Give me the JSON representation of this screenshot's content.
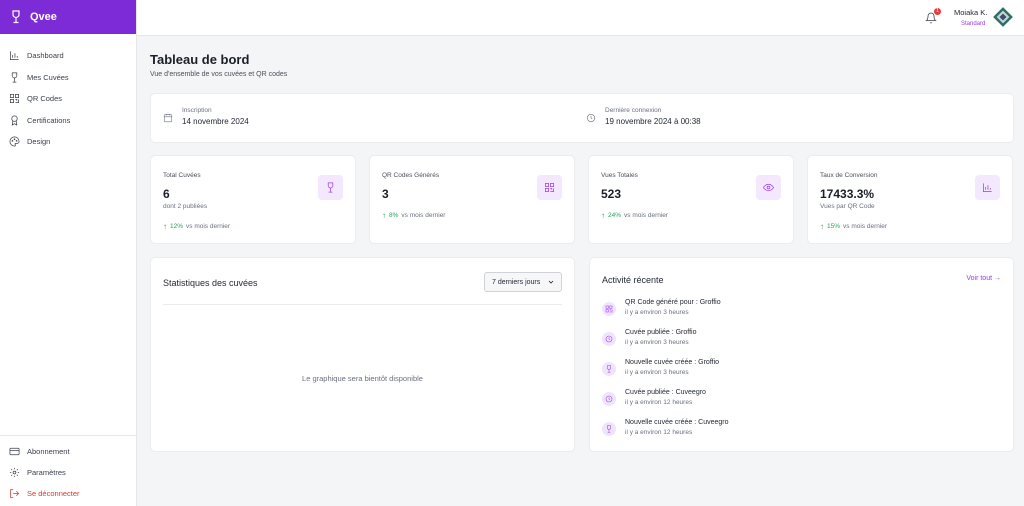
{
  "brand": {
    "name": "Qvee"
  },
  "sidebar": {
    "items": [
      {
        "label": "Dashboard",
        "icon": "chart-bar-icon"
      },
      {
        "label": "Mes Cuvées",
        "icon": "wine-glass-icon"
      },
      {
        "label": "QR Codes",
        "icon": "qr-code-icon"
      },
      {
        "label": "Certifications",
        "icon": "award-icon"
      },
      {
        "label": "Design",
        "icon": "palette-icon"
      }
    ],
    "bottom": [
      {
        "label": "Abonnement",
        "icon": "credit-card-icon"
      },
      {
        "label": "Paramètres",
        "icon": "gear-icon"
      },
      {
        "label": "Se déconnecter",
        "icon": "logout-icon"
      }
    ]
  },
  "header": {
    "notifications": "1",
    "user_name": "Moiaka K.",
    "user_plan": "Standard"
  },
  "page": {
    "title": "Tableau de bord",
    "subtitle": "Vue d'ensemble de vos cuvées et QR codes"
  },
  "info": {
    "signup_label": "Inscription",
    "signup_value": "14 novembre 2024",
    "login_label": "Dernière connexion",
    "login_value": "19 novembre 2024 à 00:38"
  },
  "stats": [
    {
      "label": "Total Cuvées",
      "value": "6",
      "sub": "dont 2 publiées",
      "pct": "12%",
      "trend": "vs mois dernier",
      "icon": "wine-glass-icon"
    },
    {
      "label": "QR Codes Générés",
      "value": "3",
      "sub": "",
      "pct": "8%",
      "trend": "vs mois dernier",
      "icon": "qr-code-icon"
    },
    {
      "label": "Vues Totales",
      "value": "523",
      "sub": "",
      "pct": "24%",
      "trend": "vs mois dernier",
      "icon": "eye-icon"
    },
    {
      "label": "Taux de Conversion",
      "value": "17433.3%",
      "sub": "Vues par QR Code",
      "pct": "15%",
      "trend": "vs mois dernier",
      "icon": "chart-bar-icon"
    }
  ],
  "chart": {
    "title": "Statistiques des cuvées",
    "range": "7 derniers jours",
    "placeholder": "Le graphique sera bientôt disponible"
  },
  "activity": {
    "title": "Activité récente",
    "see_all": "Voir tout",
    "items": [
      {
        "text": "QR Code généré pour : Groffio",
        "time": "il y a environ 3 heures",
        "icon": "qr-code-icon"
      },
      {
        "text": "Cuvée publiée : Groffio",
        "time": "il y a environ 3 heures",
        "icon": "clock-icon"
      },
      {
        "text": "Nouvelle cuvée créée : Groffio",
        "time": "il y a environ 3 heures",
        "icon": "wine-glass-icon"
      },
      {
        "text": "Cuvée publiée : Cuveegro",
        "time": "il y a environ 12 heures",
        "icon": "clock-icon"
      },
      {
        "text": "Nouvelle cuvée créée : Cuveegro",
        "time": "il y a environ 12 heures",
        "icon": "wine-glass-icon"
      }
    ]
  },
  "colors": {
    "accent": "#7c2bd6",
    "accent_light": "#9b3bef",
    "positive": "#22a45a",
    "danger": "#e0352f"
  }
}
